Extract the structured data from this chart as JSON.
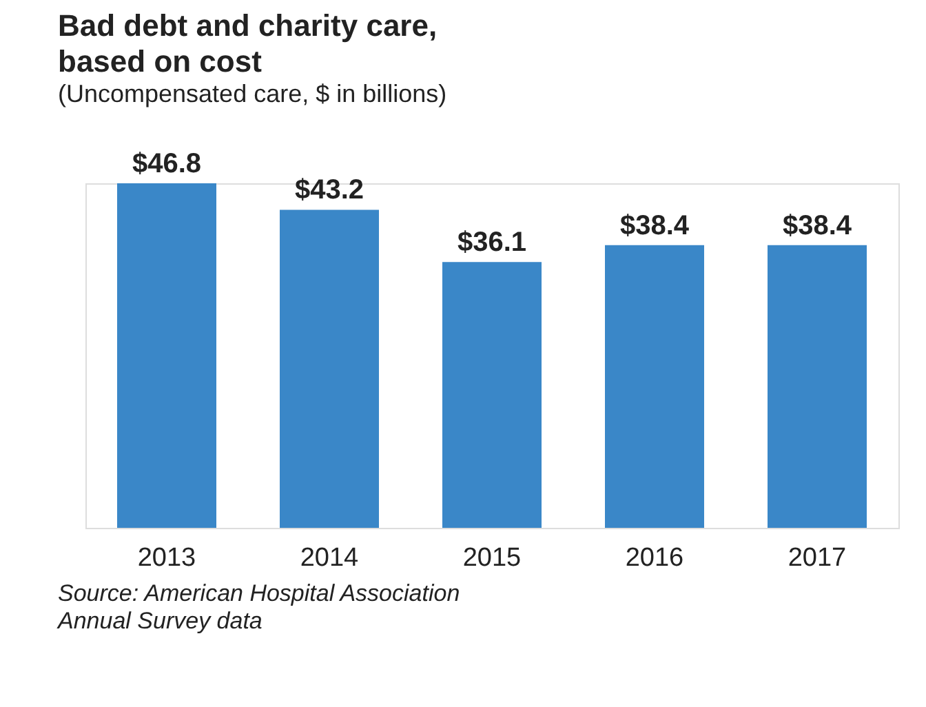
{
  "chart_data": {
    "type": "bar",
    "title": "Bad debt and charity care, based on cost",
    "subtitle": "(Uncompensated care, $ in billions)",
    "categories": [
      "2013",
      "2014",
      "2015",
      "2016",
      "2017"
    ],
    "values": [
      46.8,
      43.2,
      36.1,
      38.4,
      38.4
    ],
    "value_labels": [
      "$46.8",
      "$43.2",
      "$36.1",
      "$38.4",
      "$38.4"
    ],
    "color": "#3a87c8",
    "grid": false,
    "annotations": [
      "Source: American Hospital Association Annual Survey data"
    ]
  }
}
